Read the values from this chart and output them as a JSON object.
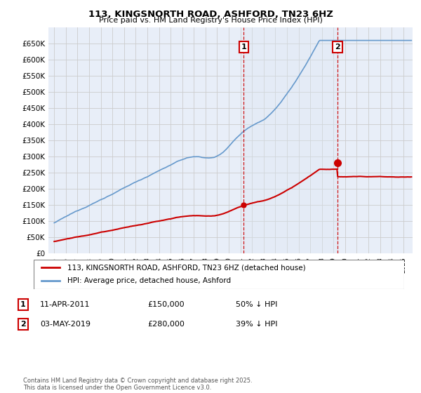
{
  "title": "113, KINGSNORTH ROAD, ASHFORD, TN23 6HZ",
  "subtitle": "Price paid vs. HM Land Registry's House Price Index (HPI)",
  "legend_house": "113, KINGSNORTH ROAD, ASHFORD, TN23 6HZ (detached house)",
  "legend_hpi": "HPI: Average price, detached house, Ashford",
  "footnote": "Contains HM Land Registry data © Crown copyright and database right 2025.\nThis data is licensed under the Open Government Licence v3.0.",
  "house_color": "#cc0000",
  "hpi_color": "#6699cc",
  "vline_color": "#cc0000",
  "shade_color": "#dde8f5",
  "grid_color": "#cccccc",
  "bg_color": "#e8eef8",
  "ylim": [
    0,
    700000
  ],
  "yticks": [
    0,
    50000,
    100000,
    150000,
    200000,
    250000,
    300000,
    350000,
    400000,
    450000,
    500000,
    550000,
    600000,
    650000
  ],
  "sale1_date_x": 2011.28,
  "sale1_price": 150000,
  "sale1_label": "1",
  "sale1_date_str": "11-APR-2011",
  "sale1_price_str": "£150,000",
  "sale1_pct_str": "50% ↓ HPI",
  "sale2_date_x": 2019.34,
  "sale2_price": 280000,
  "sale2_label": "2",
  "sale2_date_str": "03-MAY-2019",
  "sale2_price_str": "£280,000",
  "sale2_pct_str": "39% ↓ HPI",
  "xmin": 1994.5,
  "xmax": 2025.8
}
